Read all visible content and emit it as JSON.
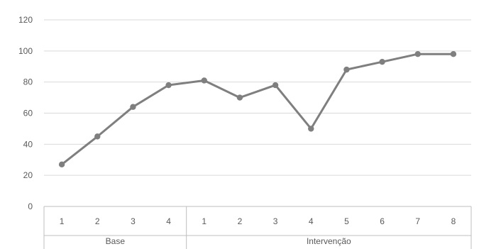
{
  "chart_data": {
    "type": "line",
    "title": "",
    "xlabel": "",
    "ylabel": "",
    "ylim": [
      0,
      120
    ],
    "y_ticks": [
      0,
      20,
      40,
      60,
      80,
      100,
      120
    ],
    "grid": true,
    "legend": "none",
    "categories": [
      "1",
      "2",
      "3",
      "4",
      "1",
      "2",
      "3",
      "4",
      "5",
      "6",
      "7",
      "8"
    ],
    "groups": [
      {
        "label": "Base",
        "count": 4
      },
      {
        "label": "Intervenção",
        "count": 8
      }
    ],
    "series": [
      {
        "values": [
          27,
          45,
          64,
          78,
          81,
          70,
          78,
          50,
          88,
          93,
          98,
          98
        ],
        "color": "#7f7f7f"
      }
    ]
  }
}
